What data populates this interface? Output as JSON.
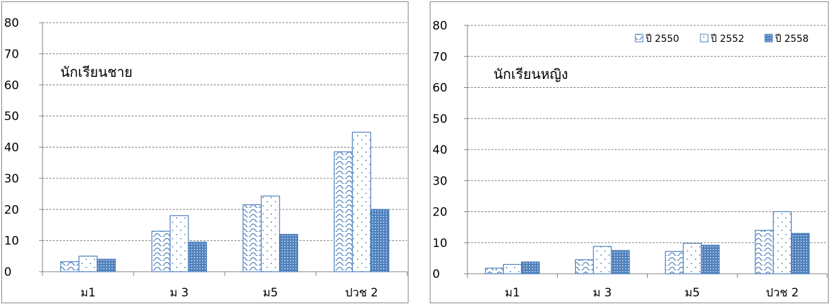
{
  "chart_data": [
    {
      "type": "bar",
      "title": "นักเรียนชาย",
      "categories": [
        "ม1",
        "ม 3",
        "ม5",
        "ปวช 2"
      ],
      "ylim": [
        0,
        80
      ],
      "yticks": [
        0,
        10,
        20,
        30,
        40,
        50,
        60,
        70,
        80
      ],
      "grid": true,
      "legend": "none",
      "series": [
        {
          "name": "ปี 2550",
          "pattern": "wave",
          "values": [
            3.2,
            13,
            21.5,
            38.5
          ]
        },
        {
          "name": "ปี 2552",
          "pattern": "dots",
          "values": [
            5,
            18,
            24.3,
            44.8
          ]
        },
        {
          "name": "ปี 2558",
          "pattern": "solid-dots",
          "values": [
            4,
            9.5,
            12,
            20
          ]
        }
      ]
    },
    {
      "type": "bar",
      "title": "นักเรียนหญิง",
      "categories": [
        "ม1",
        "ม 3",
        "ม5",
        "ปวช 2"
      ],
      "ylim": [
        0,
        80
      ],
      "yticks": [
        0,
        10,
        20,
        30,
        40,
        50,
        60,
        70,
        80
      ],
      "grid": true,
      "legend": "top-right",
      "series": [
        {
          "name": "ปี 2550",
          "pattern": "wave",
          "values": [
            1.8,
            4.5,
            7.2,
            14
          ]
        },
        {
          "name": "ปี 2552",
          "pattern": "dots",
          "values": [
            3,
            8.8,
            9.8,
            20
          ]
        },
        {
          "name": "ปี 2558",
          "pattern": "solid-dots",
          "values": [
            3.8,
            7.5,
            9.2,
            13
          ]
        }
      ]
    }
  ],
  "colors": {
    "bar": "#4f81bd",
    "grid": "#808080",
    "border": "#868686"
  }
}
